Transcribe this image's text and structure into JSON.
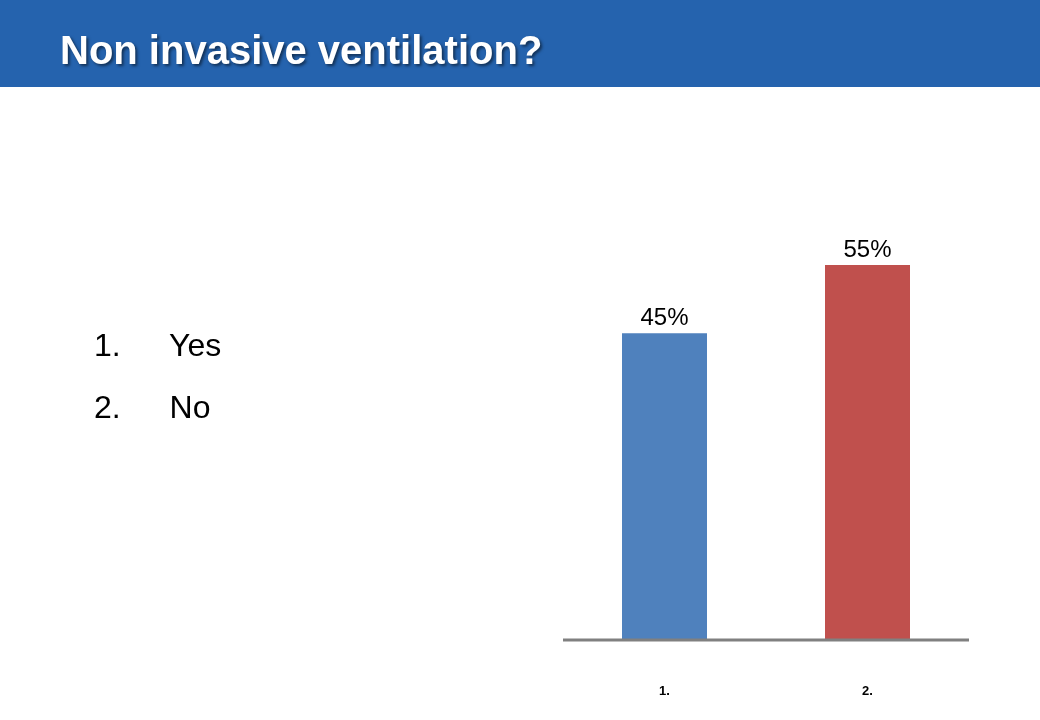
{
  "chart_data": {
    "type": "bar",
    "title": "Non invasive ventilation?",
    "annotations": [
      "1. Yes",
      "2. No"
    ],
    "categories": [
      "1.",
      "2."
    ],
    "values": [
      45,
      55
    ],
    "colors": [
      "#4f81bd",
      "#c0504d"
    ],
    "value_labels": [
      "45%",
      "55%"
    ]
  }
}
